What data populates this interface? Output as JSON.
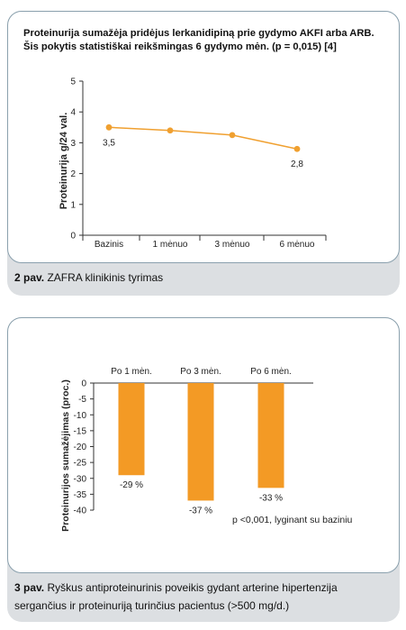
{
  "figure1": {
    "title_line1": "Proteinurija sumažėja pridėjus lerkanidipiną prie gydymo AKFI arba ARB.",
    "title_line2": "Šis pokytis statistiškai reikšmingas 6 gydymo mėn. (p = 0,015) [4]",
    "caption_bold": "2 pav.",
    "caption_text": " ZAFRA klinikinis tyrimas",
    "chart_data": {
      "type": "line",
      "categories": [
        "Bazinis",
        "1 mėnuo",
        "3 mėnuo",
        "6 mėnuo"
      ],
      "values": [
        3.5,
        3.4,
        3.25,
        2.8
      ],
      "data_labels": [
        "3,5",
        "",
        "",
        "2,8"
      ],
      "ylabel": "Proteinurija g/24 val.",
      "ylim": [
        0,
        5
      ],
      "yticks": [
        "0",
        "1",
        "2",
        "3",
        "4",
        "5"
      ],
      "color": "#f0a030"
    }
  },
  "figure2": {
    "caption_bold": "3 pav.",
    "caption_text": " Ryškus antiproteinurinis poveikis gydant arterine hipertenzija sergančius ir proteinuriją turinčius pacientus (>500 mg/d.)",
    "note": "p <0,001, lyginant su baziniu",
    "chart_data": {
      "type": "bar",
      "categories": [
        "Po 1 mėn.",
        "Po 3 mėn.",
        "Po 6 mėn."
      ],
      "values": [
        -29,
        -37,
        -33
      ],
      "data_labels": [
        "-29 %",
        "-37 %",
        "-33 %"
      ],
      "ylabel": "Proteinurijos sumažėjimas (proc.)",
      "ylim": [
        -40,
        0
      ],
      "yticks": [
        "0",
        "-5",
        "-10",
        "-15",
        "-20",
        "-25",
        "-30",
        "-35",
        "-40"
      ],
      "color": "#f39a25"
    }
  }
}
